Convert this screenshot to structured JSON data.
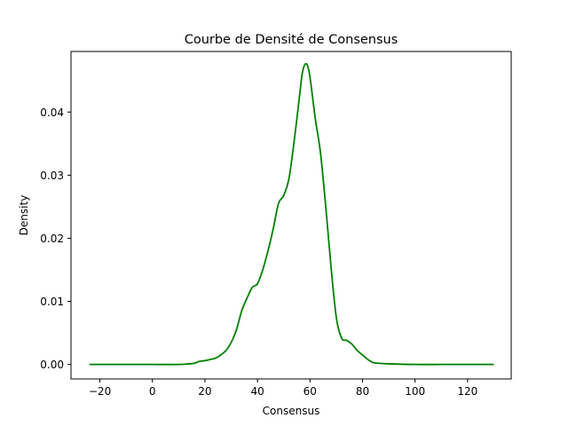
{
  "chart_data": {
    "type": "line",
    "title": "Courbe de Densité de Consensus",
    "xlabel": "Consensus",
    "ylabel": "Density",
    "xlim": [
      -31,
      136.6
    ],
    "ylim": [
      -0.0023,
      0.0496
    ],
    "xticks": [
      -20,
      0,
      20,
      40,
      60,
      80,
      100,
      120
    ],
    "xtick_labels": [
      "−20",
      "0",
      "20",
      "40",
      "60",
      "80",
      "100",
      "120"
    ],
    "yticks": [
      0.0,
      0.01,
      0.02,
      0.03,
      0.04
    ],
    "ytick_labels": [
      "0.00",
      "0.01",
      "0.02",
      "0.03",
      "0.04"
    ],
    "grid": false,
    "legend": "none",
    "series": [
      {
        "color": "#008000",
        "x": [
          -24,
          -10,
          0,
          10,
          14,
          16,
          18,
          20,
          22,
          24,
          26,
          28,
          30,
          32,
          34,
          36,
          38,
          40,
          42,
          44,
          46,
          48,
          50,
          52,
          54,
          56,
          57,
          58,
          59,
          60,
          62,
          64,
          66,
          68,
          70,
          72,
          74,
          76,
          78,
          80,
          82,
          84,
          86,
          90,
          100,
          110,
          120,
          130
        ],
        "y": [
          0.0,
          0.0,
          0.0,
          0.0,
          0.0001,
          0.0002,
          0.0005,
          0.0006,
          0.0008,
          0.001,
          0.0015,
          0.0022,
          0.0035,
          0.0055,
          0.0085,
          0.0105,
          0.0122,
          0.0128,
          0.015,
          0.018,
          0.0215,
          0.0255,
          0.0268,
          0.0295,
          0.0355,
          0.0425,
          0.046,
          0.0475,
          0.0474,
          0.0455,
          0.039,
          0.0335,
          0.025,
          0.0155,
          0.0075,
          0.0042,
          0.0038,
          0.0032,
          0.0022,
          0.0015,
          0.0008,
          0.0003,
          0.0002,
          0.0001,
          0.0,
          0.0,
          0.0,
          0.0
        ]
      }
    ]
  }
}
